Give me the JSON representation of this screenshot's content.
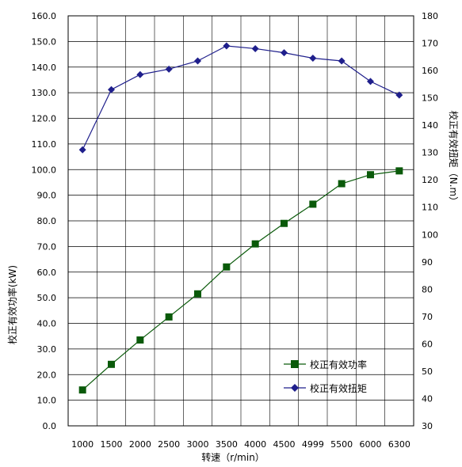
{
  "chart_data": {
    "type": "line",
    "x": [
      "1000",
      "1500",
      "2000",
      "2500",
      "3000",
      "3500",
      "4000",
      "4500",
      "4999",
      "5500",
      "6000",
      "6300"
    ],
    "xlabel": "转速（r/min）",
    "ylabel_left": "校正有效功率(kW)",
    "ylabel_right": "校正有效扭矩（N.m）",
    "ylim_left": [
      0,
      160
    ],
    "ylim_right": [
      30,
      180
    ],
    "yticks_left": [
      "0.0",
      "10.0",
      "20.0",
      "30.0",
      "40.0",
      "50.0",
      "60.0",
      "70.0",
      "80.0",
      "90.0",
      "100.0",
      "110.0",
      "120.0",
      "130.0",
      "140.0",
      "150.0",
      "160.0"
    ],
    "yticks_right": [
      "30",
      "40",
      "50",
      "60",
      "70",
      "80",
      "90",
      "100",
      "110",
      "120",
      "130",
      "140",
      "150",
      "160",
      "170",
      "180"
    ],
    "grid": true,
    "legend_position": "lower-right",
    "series": [
      {
        "name": "校正有效功率",
        "axis": "left",
        "color": "#0a5a0a",
        "marker": "square",
        "values": [
          14.0,
          24.0,
          33.5,
          42.5,
          51.5,
          62.0,
          71.0,
          79.0,
          86.5,
          94.5,
          98.0,
          99.5
        ]
      },
      {
        "name": "校正有效扭矩",
        "axis": "right",
        "color": "#1f1f8c",
        "marker": "diamond",
        "values": [
          131.0,
          153.0,
          158.5,
          160.5,
          163.5,
          169.0,
          168.0,
          166.5,
          164.5,
          163.5,
          156.0,
          151.0
        ]
      }
    ]
  }
}
